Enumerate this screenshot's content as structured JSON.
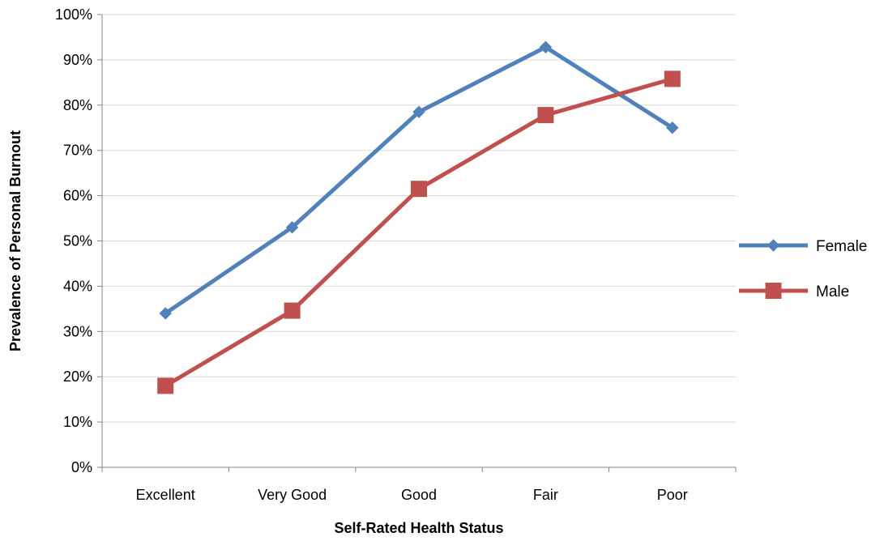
{
  "chart_data": {
    "type": "line",
    "title": "",
    "xlabel": "Self-Rated Health Status",
    "ylabel": "Prevalence of Personal Burnout",
    "categories": [
      "Excellent",
      "Very Good",
      "Good",
      "Fair",
      "Poor"
    ],
    "y_ticks": [
      "0%",
      "10%",
      "20%",
      "30%",
      "40%",
      "50%",
      "60%",
      "70%",
      "80%",
      "90%",
      "100%"
    ],
    "ylim": [
      0,
      100
    ],
    "y_unit": "%",
    "grid": "horizontal",
    "legend_position": "right",
    "series": [
      {
        "name": "Female",
        "color": "#4f81bd",
        "marker": "diamond",
        "values": [
          34,
          53,
          78.5,
          92.8,
          75
        ]
      },
      {
        "name": "Male",
        "color": "#c0504d",
        "marker": "square",
        "values": [
          18,
          34.6,
          61.5,
          77.8,
          85.8
        ]
      }
    ],
    "colors": {
      "grid": "#d9d9d9",
      "axis": "#868686"
    }
  }
}
